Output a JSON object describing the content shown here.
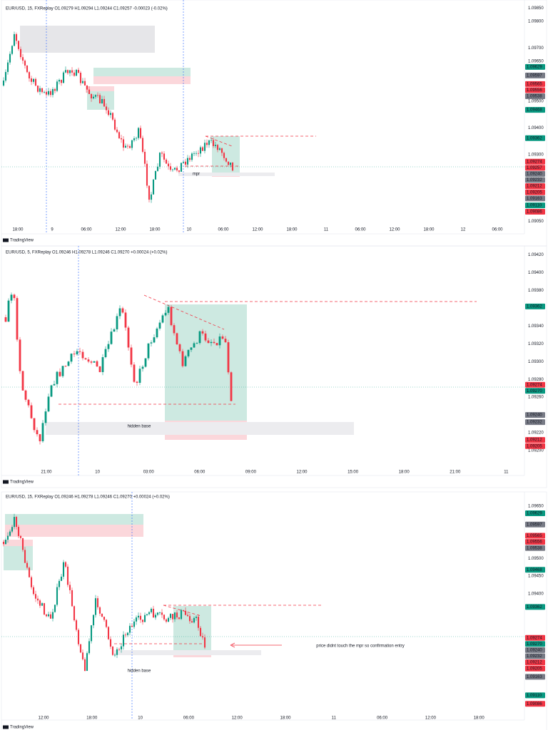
{
  "panels": [
    {
      "header": "EUR/USD, 15, FXReplay  O1.09279  H1.09294  L1.09244  C1.09257  -0.00023 (-0.02%)",
      "ylim": [
        1.0903,
        1.0988
      ],
      "ticks": [
        {
          "value": 1.0985,
          "label": "1.09850"
        },
        {
          "value": 1.098,
          "label": "1.09800"
        },
        {
          "value": 1.097,
          "label": "1.09700"
        },
        {
          "value": 1.0965,
          "label": "1.09650"
        },
        {
          "value": 1.095,
          "label": "1.09500"
        },
        {
          "value": 1.094,
          "label": "1.09400"
        },
        {
          "value": 1.093,
          "label": "1.09300"
        },
        {
          "value": 1.0905,
          "label": "1.09050"
        }
      ],
      "badges": [
        {
          "value": 1.09629,
          "label": "1.09629",
          "color": "#089981"
        },
        {
          "value": 1.09597,
          "label": "1.09597",
          "color": "#787b86"
        },
        {
          "value": 1.09565,
          "label": "1.09565",
          "color": "#f23645"
        },
        {
          "value": 1.09556,
          "label": "1.09556",
          "color": "#f23645"
        },
        {
          "value": 1.09538,
          "label": "1.09538",
          "color": "#787b86"
        },
        {
          "value": 1.09468,
          "label": "1.09468",
          "color": "#089981"
        },
        {
          "value": 1.09362,
          "label": "1.09362",
          "color": "#089981"
        },
        {
          "value": 1.09274,
          "label": "1.09274",
          "color": "#f23645"
        },
        {
          "value": 1.09257,
          "label": "1.09257",
          "color": "#f23645"
        },
        {
          "value": 1.0924,
          "label": "1.09240",
          "color": "#787b86"
        },
        {
          "value": 1.09232,
          "label": "1.09232",
          "color": "#787b86"
        },
        {
          "value": 1.09212,
          "label": "1.09212",
          "color": "#f23645"
        },
        {
          "value": 1.09205,
          "label": "1.09205",
          "color": "#f23645"
        },
        {
          "value": 1.09163,
          "label": "1.09163",
          "color": "#787b86"
        },
        {
          "value": 1.0911,
          "label": "1.09110",
          "color": "#089981"
        },
        {
          "value": 1.09086,
          "label": "1.09086",
          "color": "#f23645"
        }
      ],
      "times": [
        "18:00",
        "9",
        "06:00",
        "12:00",
        "18:00",
        "10",
        "06:00",
        "12:00",
        "18:00",
        "11",
        "06:00",
        "12:00",
        "18:00",
        "12",
        "06:00"
      ],
      "annotations": [
        "mpr"
      ],
      "logo": "TradingView"
    },
    {
      "header": "EUR/USD, 5, FXReplay  O1.09246  H1.09278  L1.09246  C1.09270  +0.00024 (+0.02%)",
      "ylim": [
        1.0918,
        1.0943
      ],
      "ticks": [
        {
          "value": 1.0942,
          "label": "1.09420"
        },
        {
          "value": 1.094,
          "label": "1.09400"
        },
        {
          "value": 1.0938,
          "label": "1.09380"
        },
        {
          "value": 1.0934,
          "label": "1.09340"
        },
        {
          "value": 1.0932,
          "label": "1.09320"
        },
        {
          "value": 1.093,
          "label": "1.09300"
        },
        {
          "value": 1.0928,
          "label": "1.09280"
        },
        {
          "value": 1.0926,
          "label": "1.09260"
        },
        {
          "value": 1.0922,
          "label": "1.09220"
        },
        {
          "value": 1.092,
          "label": "1.09200"
        }
      ],
      "badges": [
        {
          "value": 1.09362,
          "label": "1.09362",
          "color": "#089981"
        },
        {
          "value": 1.09274,
          "label": "1.09274",
          "color": "#f23645"
        },
        {
          "value": 1.0927,
          "label": "1.09270",
          "color": "#089981"
        },
        {
          "value": 1.0924,
          "label": "1.09240",
          "color": "#787b86"
        },
        {
          "value": 1.09232,
          "label": "1.09232",
          "color": "#787b86"
        },
        {
          "value": 1.09212,
          "label": "1.09212",
          "color": "#f23645"
        },
        {
          "value": 1.09205,
          "label": "1.09205",
          "color": "#f23645"
        }
      ],
      "times": [
        "21:00",
        "10",
        "03:00",
        "06:00",
        "09:00",
        "12:00",
        "15:00",
        "18:00",
        "21:00",
        "11"
      ],
      "annotations": [
        "hidden base"
      ],
      "logo": "TradingView"
    },
    {
      "header": "EUR/USD, 15, FXReplay  O1.09246  H1.09278  L1.09246  C1.09270  +0.00024 (+0.02%)",
      "ylim": [
        1.0906,
        1.0969
      ],
      "ticks": [
        {
          "value": 1.0965,
          "label": "1.09650"
        },
        {
          "value": 1.095,
          "label": "1.09500"
        },
        {
          "value": 1.0945,
          "label": "1.09450"
        },
        {
          "value": 1.094,
          "label": "1.09400"
        }
      ],
      "badges": [
        {
          "value": 1.09629,
          "label": "1.09629",
          "color": "#089981"
        },
        {
          "value": 1.09597,
          "label": "1.09597",
          "color": "#787b86"
        },
        {
          "value": 1.09565,
          "label": "1.09565",
          "color": "#f23645"
        },
        {
          "value": 1.09556,
          "label": "1.09556",
          "color": "#f23645"
        },
        {
          "value": 1.09538,
          "label": "1.09538",
          "color": "#787b86"
        },
        {
          "value": 1.09468,
          "label": "1.09468",
          "color": "#089981"
        },
        {
          "value": 1.09362,
          "label": "1.09362",
          "color": "#089981"
        },
        {
          "value": 1.09274,
          "label": "1.09274",
          "color": "#f23645"
        },
        {
          "value": 1.0927,
          "label": "1.09270",
          "color": "#089981"
        },
        {
          "value": 1.0924,
          "label": "1.09240",
          "color": "#787b86"
        },
        {
          "value": 1.09232,
          "label": "1.09232",
          "color": "#787b86"
        },
        {
          "value": 1.09212,
          "label": "1.09212",
          "color": "#f23645"
        },
        {
          "value": 1.09205,
          "label": "1.09205",
          "color": "#f23645"
        },
        {
          "value": 1.09163,
          "label": "1.09163",
          "color": "#787b86"
        },
        {
          "value": 1.0911,
          "label": "1.09110",
          "color": "#089981"
        },
        {
          "value": 1.09086,
          "label": "1.09086",
          "color": "#f23645"
        }
      ],
      "times": [
        "12:00",
        "18:00",
        "10",
        "06:00",
        "12:00",
        "18:00",
        "11",
        "06:00",
        "12:00",
        "18:00"
      ],
      "annotations": [
        "hidden base",
        "price didnt touch the mpr so confirmation entry"
      ],
      "logo": "TradingView"
    }
  ]
}
